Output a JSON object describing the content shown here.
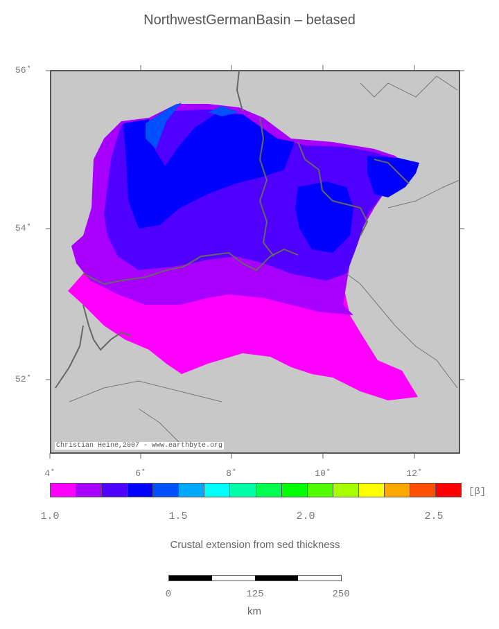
{
  "title": "NorthwestGermanBasin – betased",
  "map": {
    "y_ticks": [
      "56˚",
      "54˚",
      "52˚"
    ],
    "x_ticks": [
      "4˚",
      "6˚",
      "8˚",
      "10˚",
      "12˚"
    ],
    "credit": "Christian Heine,2007 - www.earthbyte.org",
    "land_color": "#c8c8c8",
    "coast_color": "#666666"
  },
  "colorbar": {
    "colors": [
      "#ff00ff",
      "#a800ff",
      "#5000ff",
      "#0000ff",
      "#0050ff",
      "#00a8ff",
      "#00ffff",
      "#00ffa8",
      "#00ff50",
      "#00ff00",
      "#50ff00",
      "#a8ff00",
      "#ffff00",
      "#ffa800",
      "#ff5000",
      "#ff0000"
    ],
    "unit": "[β]",
    "labels": [
      "1.0",
      "1.5",
      "2.0",
      "2.5"
    ]
  },
  "caption": "Crustal extension from sed thickness",
  "scalebar": {
    "labels": [
      "0",
      "125",
      "250"
    ],
    "unit": "km"
  }
}
